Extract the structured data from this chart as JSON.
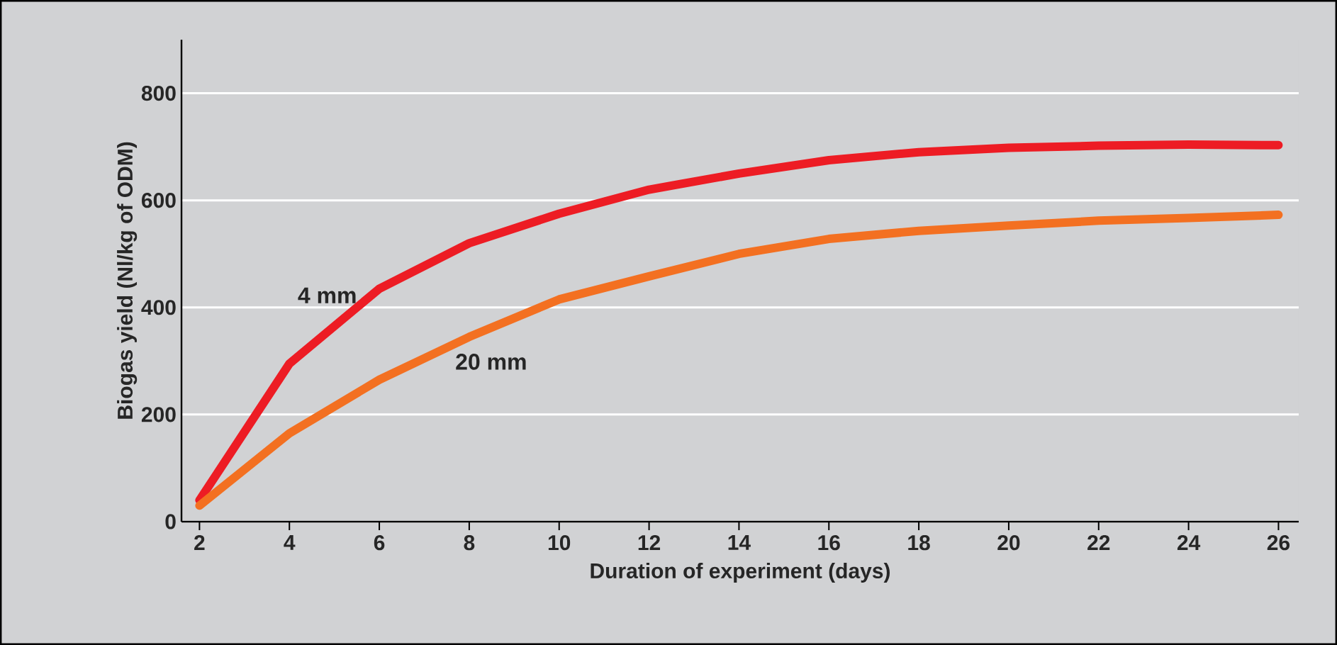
{
  "chart_data": {
    "type": "line",
    "xlabel": "Duration of experiment (days)",
    "ylabel": "Biogas yield (Nl/kg of ODM)",
    "x": [
      2,
      4,
      6,
      8,
      10,
      12,
      14,
      16,
      18,
      20,
      22,
      24,
      26
    ],
    "series": [
      {
        "name": "4 mm",
        "color": "#ed1c24",
        "values": [
          40,
          295,
          435,
          520,
          575,
          620,
          650,
          675,
          690,
          698,
          702,
          704,
          703
        ]
      },
      {
        "name": "20 mm",
        "color": "#f37021",
        "values": [
          30,
          165,
          265,
          345,
          415,
          458,
          500,
          528,
          543,
          553,
          562,
          567,
          573
        ]
      }
    ],
    "xlim": [
      1.6,
      26.45
    ],
    "ylim": [
      0,
      900
    ],
    "xticks": [
      2,
      4,
      6,
      8,
      10,
      12,
      14,
      16,
      18,
      20,
      22,
      24,
      26
    ],
    "yticks": [
      0,
      200,
      400,
      600,
      800
    ],
    "grid": "y",
    "legend": false,
    "marker": "none",
    "line_style": "solid"
  }
}
